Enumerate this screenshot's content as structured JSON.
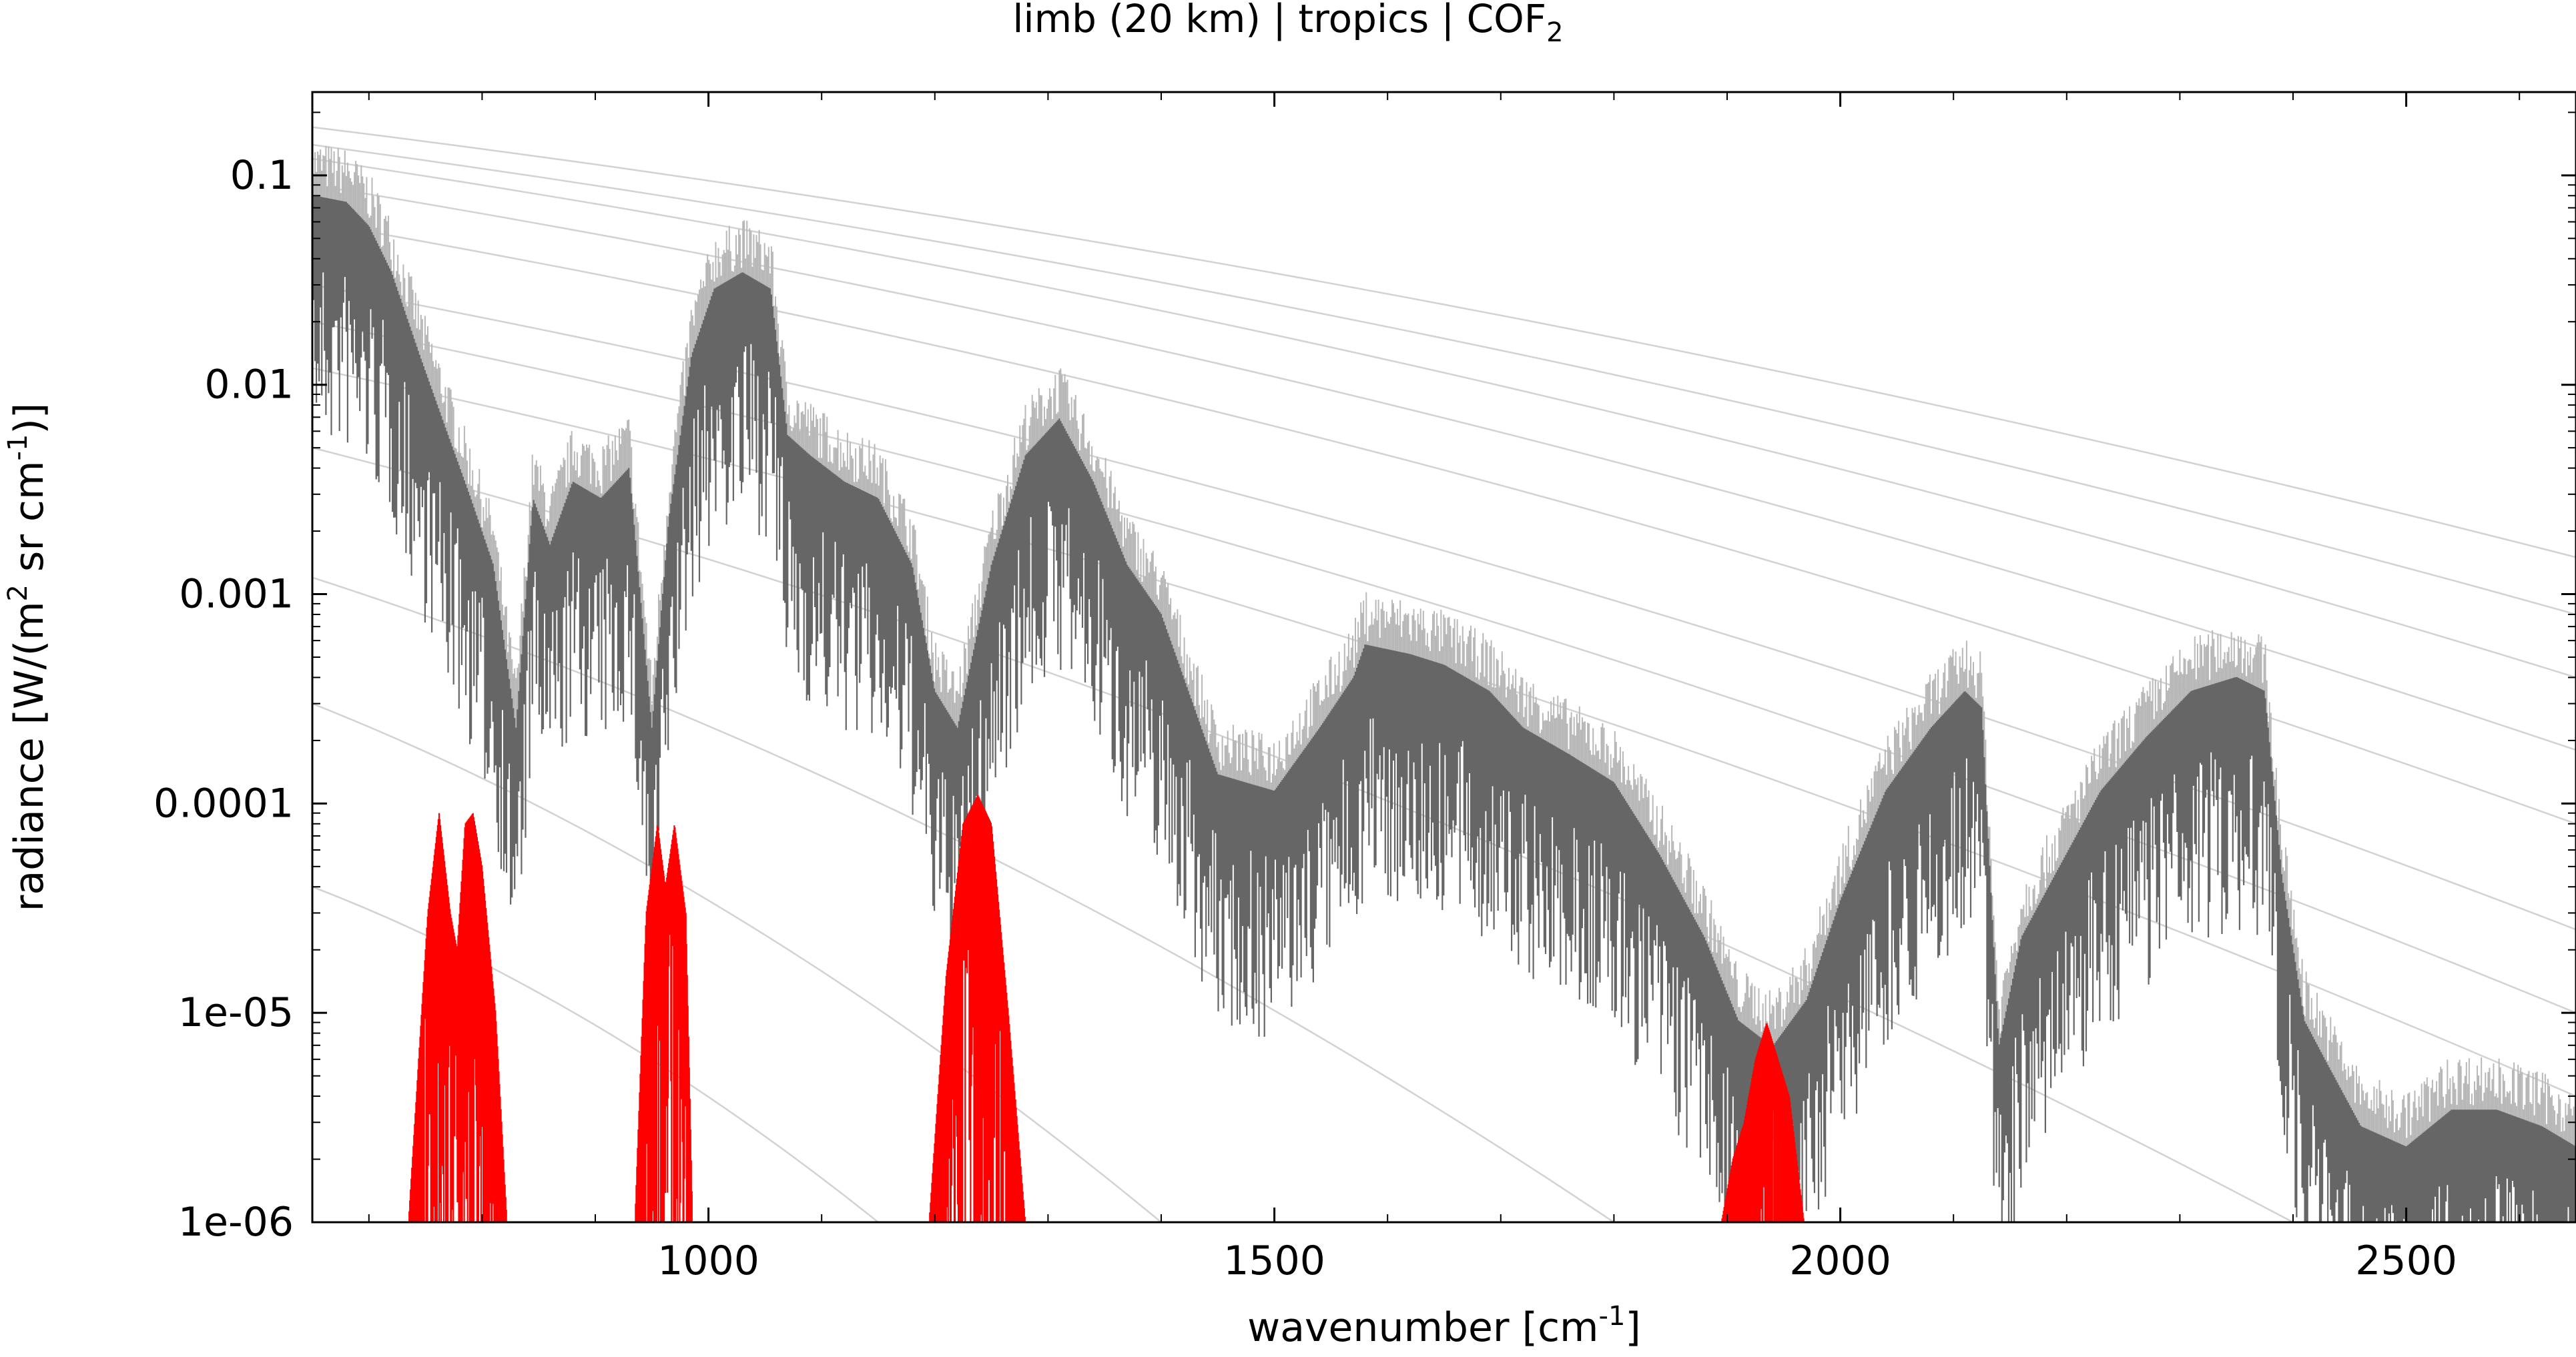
{
  "chart_data": {
    "type": "line",
    "title": "limb (20 km) | tropics | COF",
    "title_subscript": "2",
    "xlabel": "wavenumber [cm",
    "xlabel_sup": "-1",
    "xlabel_end": "]",
    "ylabel_parts": [
      "radiance [W/(m",
      "2",
      " sr cm",
      "-1",
      ")]"
    ],
    "xlim": [
      650,
      2650
    ],
    "ylim": [
      1e-06,
      0.25
    ],
    "yscale": "log",
    "grid": false,
    "legend": "none",
    "x_ticks": [
      1000,
      1500,
      2000,
      2500
    ],
    "x_tick_labels": [
      "1000",
      "1500",
      "2000",
      "2500"
    ],
    "y_ticks": [
      0.1,
      0.01,
      0.001,
      0.0001,
      1e-05,
      1e-06
    ],
    "y_tick_labels": [
      "0.1",
      "0.01",
      "0.001",
      "0.0001",
      "1e-05",
      "1e-06"
    ],
    "colors": {
      "total_spectrum": "#666666",
      "total_spectrum_light": "#b8b8b8",
      "gas_spectrum": "#ff0000",
      "reference_curves": "#d2d2d2"
    },
    "series": [
      {
        "role": "total",
        "x": [
          650,
          680,
          700,
          720,
          745,
          770,
          790,
          810,
          830,
          845,
          860,
          880,
          905,
          930,
          950,
          965,
          985,
          1005,
          1030,
          1055,
          1070,
          1090,
          1120,
          1150,
          1180,
          1200,
          1220,
          1250,
          1280,
          1310,
          1340,
          1370,
          1400,
          1450,
          1500,
          1540,
          1570,
          1580,
          1620,
          1650,
          1690,
          1720,
          1760,
          1800,
          1840,
          1880,
          1910,
          1940,
          1970,
          2000,
          2040,
          2080,
          2110,
          2125,
          2140,
          2160,
          2190,
          2230,
          2270,
          2310,
          2350,
          2375,
          2390,
          2410,
          2430,
          2460,
          2500,
          2540,
          2580,
          2620,
          2650
        ],
        "y": [
          0.07,
          0.065,
          0.05,
          0.03,
          0.012,
          0.005,
          0.0025,
          0.0012,
          0.0002,
          0.0025,
          0.0015,
          0.003,
          0.0025,
          0.0035,
          0.0002,
          0.002,
          0.012,
          0.025,
          0.03,
          0.025,
          0.005,
          0.004,
          0.003,
          0.0025,
          0.0012,
          0.0003,
          0.0002,
          0.0012,
          0.004,
          0.006,
          0.003,
          0.0012,
          0.0007,
          0.00012,
          0.0001,
          0.0002,
          0.00035,
          0.0005,
          0.00045,
          0.0004,
          0.0003,
          0.0002,
          0.00015,
          0.00011,
          5e-05,
          2e-05,
          8e-06,
          6e-06,
          1e-05,
          3e-05,
          0.0001,
          0.0002,
          0.0003,
          0.00025,
          6e-06,
          2e-05,
          4e-05,
          0.0001,
          0.00018,
          0.0003,
          0.00035,
          0.0003,
          4e-05,
          8e-06,
          5e-06,
          2.5e-06,
          2e-06,
          3e-06,
          3e-06,
          2.5e-06,
          2e-06
        ]
      },
      {
        "role": "gas",
        "bands": [
          {
            "x": [
              735,
              752,
              762,
              772,
              778,
              785,
              792,
              800,
              812,
              822
            ],
            "y": [
              1e-06,
              3e-05,
              9e-05,
              3e-05,
              2e-05,
              8e-05,
              9e-05,
              5e-05,
              1e-05,
              1e-06
            ]
          },
          {
            "x": [
              935,
              945,
              955,
              962,
              970,
              980,
              986
            ],
            "y": [
              1e-06,
              3e-05,
              8e-05,
              4e-05,
              8e-05,
              3e-05,
              1e-06
            ]
          },
          {
            "x": [
              1195,
              1210,
              1225,
              1238,
              1250,
              1265,
              1280
            ],
            "y": [
              1e-06,
              1.5e-05,
              8e-05,
              0.00011,
              8e-05,
              1e-05,
              1e-06
            ]
          },
          {
            "x": [
              1895,
              1905,
              1915,
              1925,
              1935,
              1945,
              1955,
              1968
            ],
            "y": [
              1e-06,
              2e-06,
              3e-06,
              6e-06,
              9e-06,
              6e-06,
              4e-06,
              1e-06
            ]
          }
        ]
      }
    ],
    "reference_curves": [
      {
        "x": [
          650,
          2650
        ],
        "y": [
          0.17,
          0.0015
        ]
      },
      {
        "x": [
          650,
          2650
        ],
        "y": [
          0.14,
          0.0008
        ]
      },
      {
        "x": [
          650,
          2650
        ],
        "y": [
          0.12,
          0.0004
        ]
      },
      {
        "x": [
          650,
          2650
        ],
        "y": [
          0.09,
          0.00018
        ]
      },
      {
        "x": [
          650,
          2650
        ],
        "y": [
          0.06,
          8e-05
        ]
      },
      {
        "x": [
          650,
          2650
        ],
        "y": [
          0.03,
          2.5e-05
        ]
      },
      {
        "x": [
          650,
          2650
        ],
        "y": [
          0.02,
          1e-05
        ]
      },
      {
        "x": [
          650,
          2650
        ],
        "y": [
          0.012,
          4e-06
        ]
      },
      {
        "x": [
          650,
          2400
        ],
        "y": [
          0.005,
          1e-06
        ]
      },
      {
        "x": [
          650,
          1800
        ],
        "y": [
          0.0012,
          1e-06
        ]
      },
      {
        "x": [
          650,
          1400
        ],
        "y": [
          0.0003,
          1e-06
        ]
      },
      {
        "x": [
          650,
          1150
        ],
        "y": [
          4e-05,
          1e-06
        ]
      }
    ]
  }
}
